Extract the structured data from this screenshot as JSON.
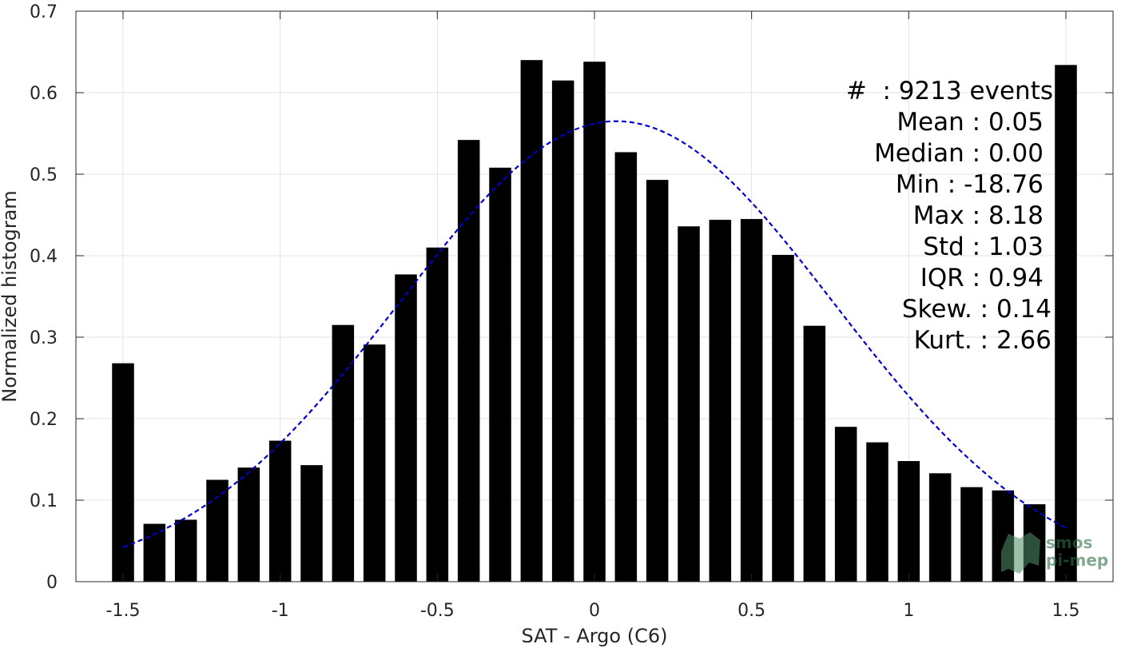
{
  "chart_data": {
    "type": "bar",
    "xlabel": "SAT - Argo (C6)",
    "ylabel": "Normalized histogram",
    "xlim": [
      -1.65,
      1.65
    ],
    "ylim": [
      0,
      0.7
    ],
    "xticks": [
      -1.5,
      -1,
      -0.5,
      0,
      0.5,
      1,
      1.5
    ],
    "xtick_labels": [
      "-1.5",
      "-1",
      "-0.5",
      "0",
      "0.5",
      "1",
      "1.5"
    ],
    "yticks": [
      0,
      0.1,
      0.2,
      0.3,
      0.4,
      0.5,
      0.6,
      0.7
    ],
    "ytick_labels": [
      "0",
      "0.1",
      "0.2",
      "0.3",
      "0.4",
      "0.5",
      "0.6",
      "0.7"
    ],
    "grid": true,
    "bar_width": 0.07,
    "x": [
      -1.5,
      -1.4,
      -1.3,
      -1.2,
      -1.1,
      -1.0,
      -0.9,
      -0.8,
      -0.7,
      -0.6,
      -0.5,
      -0.4,
      -0.3,
      -0.2,
      -0.1,
      0.0,
      0.1,
      0.2,
      0.3,
      0.4,
      0.5,
      0.6,
      0.7,
      0.8,
      0.9,
      1.0,
      1.1,
      1.2,
      1.3,
      1.4,
      1.5
    ],
    "values": [
      0.268,
      0.071,
      0.076,
      0.125,
      0.14,
      0.173,
      0.143,
      0.315,
      0.291,
      0.377,
      0.41,
      0.542,
      0.508,
      0.64,
      0.615,
      0.638,
      0.527,
      0.493,
      0.436,
      0.444,
      0.445,
      0.401,
      0.314,
      0.19,
      0.171,
      0.148,
      0.133,
      0.116,
      0.112,
      0.095,
      0.634
    ],
    "bar_color": "#000000",
    "fit": {
      "type": "gaussian",
      "mean": 0.07,
      "sigma": 0.69,
      "peak": 0.565,
      "x_range": [
        -1.5,
        1.5
      ],
      "color": "#0000cc",
      "style": "dashed"
    },
    "stats": [
      "#  : 9213 events",
      "Mean : 0.05",
      "Median : 0.00",
      "Min : -18.76",
      "Max : 8.18",
      "Std : 1.03",
      "IQR : 0.94",
      "Skew. : 0.14",
      "Kurt. : 2.66"
    ],
    "stats_placement": "top-right"
  },
  "logo": {
    "line1": "smos",
    "line2": "pi-mep",
    "color": "#2e6e48"
  }
}
